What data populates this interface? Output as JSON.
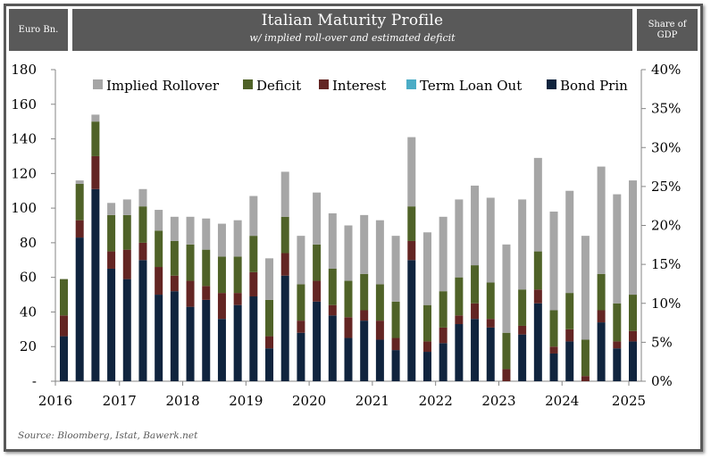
{
  "header": {
    "left_label": "Euro Bn.",
    "title": "Italian Maturity Profile",
    "subtitle": "w/ implied roll-over and estimated deficit",
    "right_label_line1": "Share of",
    "right_label_line2": "GDP"
  },
  "source": "Source: Bloomberg, Istat, Bawerk.net",
  "colors": {
    "implied_rollover": "#a6a6a6",
    "deficit": "#4f6228",
    "interest": "#632523",
    "term_loan_out": "#4bacc6",
    "bond_prin": "#10243e",
    "frame": "#595959"
  },
  "chart_data": {
    "type": "bar",
    "stacked": true,
    "title": "Italian Maturity Profile",
    "subtitle": "w/ implied roll-over and estimated deficit",
    "ylabel": "Euro Bn.",
    "y2label": "Share of GDP",
    "ylim": [
      0,
      180
    ],
    "y2lim": [
      0,
      40
    ],
    "yticks": [
      "-",
      "20",
      "40",
      "60",
      "80",
      "100",
      "120",
      "140",
      "160",
      "180"
    ],
    "y2ticks": [
      "0%",
      "5%",
      "10%",
      "15%",
      "20%",
      "25%",
      "30%",
      "35%",
      "40%"
    ],
    "xtick_labels": [
      "2016",
      "2017",
      "2018",
      "2019",
      "2020",
      "2021",
      "2022",
      "2023",
      "2024",
      "2025"
    ],
    "periods_per_year": 4,
    "legend_position": "top",
    "grid": false,
    "series": [
      {
        "name": "Bond Prin",
        "color": "#10243e",
        "values": [
          26,
          83,
          111,
          65,
          59,
          70,
          50,
          52,
          43,
          47,
          36,
          44,
          49,
          19,
          61,
          28,
          46,
          38,
          25,
          35,
          24,
          18,
          70,
          17,
          22,
          33,
          36,
          31,
          0,
          27,
          45,
          16,
          23,
          0,
          34,
          19,
          23
        ]
      },
      {
        "name": "Term Loan Out",
        "color": "#4bacc6",
        "values": [
          0,
          0,
          0,
          0,
          0,
          0,
          0,
          0,
          0,
          0,
          0,
          0,
          0,
          0,
          0,
          0,
          0,
          0,
          0,
          0,
          0,
          0,
          0,
          0,
          0,
          0,
          0,
          0,
          0,
          0,
          0,
          0,
          0,
          0,
          0,
          0,
          0
        ]
      },
      {
        "name": "Interest",
        "color": "#632523",
        "values": [
          12,
          10,
          19,
          10,
          17,
          10,
          16,
          9,
          15,
          8,
          15,
          7,
          14,
          7,
          13,
          7,
          12,
          6,
          12,
          6,
          11,
          7,
          11,
          6,
          9,
          5,
          9,
          5,
          7,
          5,
          8,
          4,
          7,
          3,
          7,
          4,
          6
        ]
      },
      {
        "name": "Deficit",
        "color": "#4f6228",
        "values": [
          21,
          21,
          20,
          21,
          20,
          21,
          21,
          20,
          21,
          21,
          21,
          21,
          21,
          21,
          21,
          21,
          21,
          21,
          21,
          21,
          21,
          21,
          20,
          21,
          21,
          22,
          22,
          21,
          21,
          21,
          22,
          21,
          21,
          21,
          21,
          22,
          21
        ]
      },
      {
        "name": "Implied Rollover",
        "color": "#a6a6a6",
        "values": [
          0,
          2,
          4,
          7,
          9,
          10,
          12,
          14,
          16,
          18,
          19,
          21,
          23,
          24,
          26,
          28,
          30,
          32,
          32,
          34,
          37,
          38,
          40,
          42,
          43,
          45,
          46,
          49,
          51,
          52,
          54,
          57,
          59,
          60,
          62,
          63,
          66
        ]
      }
    ],
    "legend_order": [
      "Implied Rollover",
      "Deficit",
      "Interest",
      "Term Loan Out",
      "Bond Prin"
    ]
  }
}
